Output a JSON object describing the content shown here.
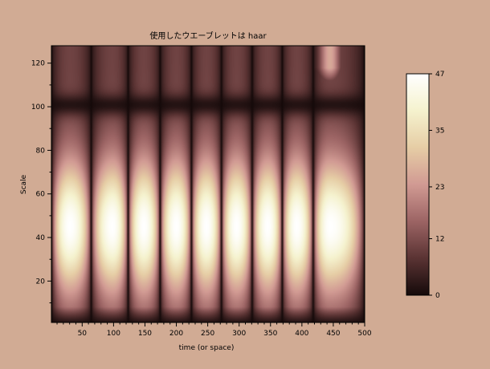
{
  "chart_data": {
    "type": "heatmap",
    "title": "使用したウエーブレットは haar",
    "xlabel": "time (or space)",
    "ylabel": "Scale",
    "xlim": [
      1,
      500
    ],
    "ylim": [
      1,
      128
    ],
    "x_ticks": [
      50,
      100,
      150,
      200,
      250,
      300,
      350,
      400,
      450,
      500
    ],
    "y_ticks": [
      20,
      40,
      60,
      80,
      100,
      120
    ],
    "colorbar": {
      "range": [
        0,
        47
      ],
      "ticks": [
        0,
        12,
        23,
        35,
        47
      ],
      "colormap": [
        "#150a0a",
        "#5a3333",
        "#9c6464",
        "#d19a93",
        "#e6cda5",
        "#f5f2ce",
        "#ffffff"
      ]
    },
    "peak_value": 47,
    "bright_band_centers_x": [
      30,
      98,
      148,
      200,
      248,
      296,
      346,
      392,
      445
    ],
    "bright_band_center_scale": 45,
    "low_value_scale_band": 101
  }
}
